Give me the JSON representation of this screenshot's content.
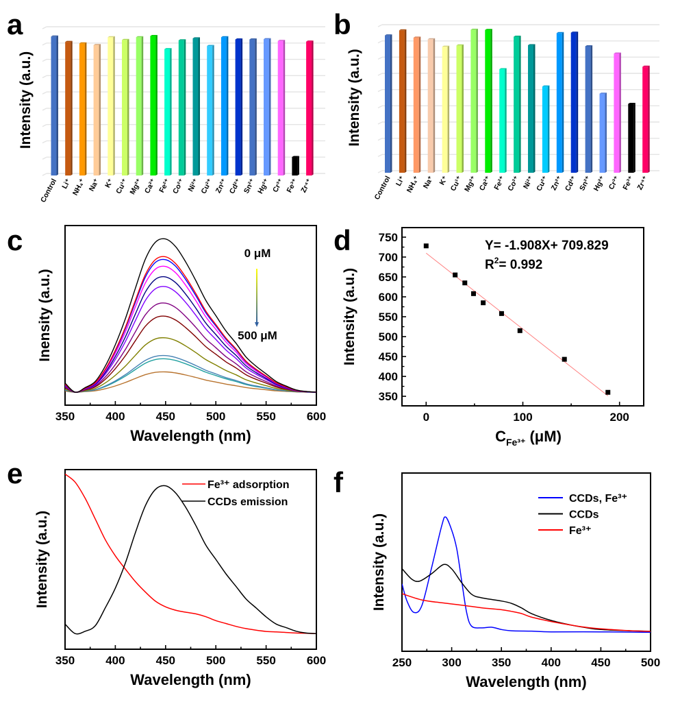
{
  "chart_data": [
    {
      "panel": "a",
      "type": "bar",
      "title": "",
      "xlabel": "",
      "ylabel": "Intensity (a.u.)",
      "ylim": [
        0,
        9
      ],
      "grid": true,
      "categories": [
        "Control",
        "Li⁺",
        "NH₄⁺",
        "Na⁺",
        "K⁺",
        "Cu¹⁺",
        "Mg²⁺",
        "Ca²⁺",
        "Fe²⁺",
        "Co²⁺",
        "Ni²⁺",
        "Cu²⁺",
        "Zn²⁺",
        "Cd²⁺",
        "Sn²⁺",
        "Hg²⁺",
        "Cr³⁺",
        "Fe³⁺",
        "Zr⁴⁺"
      ],
      "values": [
        8.4,
        8.07,
        7.98,
        7.88,
        8.36,
        8.19,
        8.36,
        8.43,
        7.63,
        8.17,
        8.29,
        7.82,
        8.36,
        8.22,
        8.22,
        8.24,
        8.13,
        1.01,
        8.09
      ],
      "colors": [
        "#4472C4",
        "#C55A11",
        "#FF9900",
        "#FFCC99",
        "#FFFF99",
        "#CCFF66",
        "#99FF66",
        "#00EE00",
        "#00FFCC",
        "#00CC99",
        "#009999",
        "#33CCFF",
        "#0099FF",
        "#0033CC",
        "#4472C4",
        "#6699FF",
        "#FF66FF",
        "#000000",
        "#FF0066"
      ]
    },
    {
      "panel": "b",
      "type": "bar",
      "title": "",
      "xlabel": "",
      "ylabel": "Intensity (a.u.)",
      "ylim": [
        0,
        9
      ],
      "grid": true,
      "categories": [
        "Control",
        "Li⁺",
        "NH₄⁺",
        "Na⁺",
        "K⁺",
        "Cu¹⁺",
        "Mg²⁺",
        "Ca²⁺",
        "Fe²⁺",
        "Co²⁺",
        "Ni²⁺",
        "Cu²⁺",
        "Zn²⁺",
        "Cd²⁺",
        "Sn²⁺",
        "Hg²⁺",
        "Cr³⁺",
        "Fe³⁺",
        "Zr⁴⁺"
      ],
      "values": [
        8.34,
        8.65,
        8.2,
        8.1,
        7.64,
        7.72,
        8.69,
        8.68,
        6.26,
        8.26,
        7.74,
        5.19,
        8.48,
        8.51,
        7.67,
        4.75,
        7.22,
        4.12,
        6.41
      ],
      "colors": [
        "#4472C4",
        "#C55A11",
        "#FF9966",
        "#F8CBAD",
        "#FFFF99",
        "#CCFF66",
        "#99FF66",
        "#00EE00",
        "#00FFCC",
        "#00CC99",
        "#009999",
        "#00CCFF",
        "#0099FF",
        "#0033CC",
        "#4472C4",
        "#6699FF",
        "#FF66FF",
        "#000000",
        "#FF0066"
      ]
    },
    {
      "panel": "c",
      "type": "line",
      "title": "",
      "xlabel": "Wavelength (nm)",
      "ylabel": "Inensity (a.u.)",
      "xlim": [
        350,
        600
      ],
      "ylim": [
        0,
        1
      ],
      "xticks": [
        350,
        400,
        450,
        500,
        550,
        600
      ],
      "grid": false,
      "annotations": {
        "top": "0 μM",
        "bottom": "500 μM"
      },
      "x": [
        350,
        360,
        370,
        380,
        390,
        400,
        410,
        420,
        430,
        440,
        450,
        460,
        470,
        480,
        490,
        500,
        510,
        520,
        530,
        540,
        550,
        560,
        570,
        580,
        590,
        600
      ],
      "profile": [
        0.06,
        0,
        0.03,
        0.07,
        0.17,
        0.31,
        0.48,
        0.68,
        0.87,
        0.98,
        1.0,
        0.95,
        0.85,
        0.73,
        0.6,
        0.5,
        0.4,
        0.32,
        0.23,
        0.17,
        0.12,
        0.07,
        0.04,
        0.015,
        0.005,
        0
      ],
      "baseline": 0.072,
      "series": [
        {
          "name": "0 μM",
          "peak": 0.925,
          "color": "#000000"
        },
        {
          "name": "s2",
          "peak": 0.826,
          "color": "#FF0000"
        },
        {
          "name": "s3",
          "peak": 0.81,
          "color": "#0000FF"
        },
        {
          "name": "s4",
          "peak": 0.772,
          "color": "#FF00FF"
        },
        {
          "name": "s5",
          "peak": 0.714,
          "color": "#000080"
        },
        {
          "name": "s6",
          "peak": 0.66,
          "color": "#8000FF"
        },
        {
          "name": "s7",
          "peak": 0.568,
          "color": "#800080"
        },
        {
          "name": "s8",
          "peak": 0.495,
          "color": "#800000"
        },
        {
          "name": "s9",
          "peak": 0.375,
          "color": "#808000"
        },
        {
          "name": "s10",
          "peak": 0.276,
          "color": "#4682B4"
        },
        {
          "name": "s11",
          "peak": 0.258,
          "color": "#20A0A0"
        },
        {
          "name": "500 μM",
          "peak": 0.185,
          "color": "#B8732E"
        }
      ]
    },
    {
      "panel": "d",
      "type": "scatter",
      "title": "",
      "xlabel": {
        "main": "C",
        "sub": "Fe³⁺",
        "unit": "(μM)"
      },
      "ylabel": "Intensity (a.u.)",
      "xlim": [
        -25,
        225
      ],
      "ylim": [
        326,
        774
      ],
      "xticks": [
        0,
        100,
        200
      ],
      "yticks": [
        350,
        400,
        450,
        500,
        550,
        600,
        650,
        700,
        750
      ],
      "x": [
        0,
        30,
        40,
        49,
        59,
        78,
        97,
        143,
        188
      ],
      "y": [
        728,
        655,
        635,
        608,
        585,
        558,
        515,
        443,
        360
      ],
      "fit": {
        "slope": -1.908,
        "intercept": 709.829,
        "x_range": [
          0,
          188
        ],
        "color": "#FF8080"
      },
      "equation": "Y= -1.908X+ 709.829",
      "r2_label": "R",
      "r2_sup": "2",
      "r2_value": "= 0.992"
    },
    {
      "panel": "e",
      "type": "line",
      "title": "",
      "xlabel": "Wavelength (nm)",
      "ylabel": "Intensity (a.u.)",
      "xlim": [
        350,
        600
      ],
      "ylim": [
        0,
        1
      ],
      "xticks": [
        350,
        400,
        450,
        500,
        550,
        600
      ],
      "legend_position": "top-right",
      "x": [
        350,
        360,
        370,
        380,
        390,
        400,
        410,
        420,
        430,
        440,
        450,
        460,
        470,
        480,
        490,
        500,
        510,
        520,
        530,
        540,
        550,
        560,
        570,
        580,
        590,
        600
      ],
      "series": [
        {
          "name": "Fe³⁺ adsorption",
          "color": "#FF0000",
          "values": [
            0.975,
            0.93,
            0.84,
            0.726,
            0.61,
            0.52,
            0.446,
            0.376,
            0.318,
            0.267,
            0.236,
            0.217,
            0.206,
            0.197,
            0.181,
            0.159,
            0.143,
            0.127,
            0.115,
            0.106,
            0.099,
            0.096,
            0.093,
            0.09,
            0.089,
            0.087
          ]
        },
        {
          "name": "CCDs emission",
          "color": "#000000",
          "values": [
            0.14,
            0.087,
            0.1,
            0.13,
            0.23,
            0.34,
            0.48,
            0.65,
            0.8,
            0.89,
            0.91,
            0.87,
            0.79,
            0.69,
            0.58,
            0.5,
            0.42,
            0.35,
            0.28,
            0.23,
            0.18,
            0.14,
            0.12,
            0.1,
            0.09,
            0.087
          ]
        }
      ]
    },
    {
      "panel": "f",
      "type": "line",
      "title": "",
      "xlabel": "Wavelength (nm)",
      "ylabel": "Intensity (a.u.)",
      "xlim": [
        250,
        500
      ],
      "ylim": [
        0,
        1
      ],
      "xticks": [
        250,
        300,
        350,
        400,
        450,
        500
      ],
      "legend_position": "top-right",
      "series": [
        {
          "name": "CCDs, Fe³⁺",
          "color": "#0000FF",
          "x": [
            250,
            255,
            262,
            270,
            280,
            290,
            294,
            300,
            305,
            310,
            315,
            320,
            330,
            340,
            350,
            360,
            380,
            400,
            450,
            500
          ],
          "values": [
            0.378,
            0.282,
            0.218,
            0.256,
            0.474,
            0.705,
            0.753,
            0.68,
            0.577,
            0.397,
            0.218,
            0.141,
            0.131,
            0.135,
            0.122,
            0.115,
            0.113,
            0.109,
            0.109,
            0.106
          ]
        },
        {
          "name": "CCDs",
          "color": "#000000",
          "x": [
            250,
            260,
            268,
            280,
            292,
            300,
            310,
            320,
            330,
            350,
            360,
            370,
            380,
            400,
            420,
            440,
            450,
            460,
            480,
            500
          ],
          "values": [
            0.464,
            0.404,
            0.394,
            0.436,
            0.487,
            0.462,
            0.385,
            0.32,
            0.3,
            0.282,
            0.269,
            0.244,
            0.212,
            0.173,
            0.147,
            0.128,
            0.122,
            0.119,
            0.115,
            0.112
          ]
        },
        {
          "name": "Fe³⁺",
          "color": "#FF0000",
          "x": [
            250,
            270,
            290,
            310,
            330,
            350,
            360,
            370,
            380,
            400,
            420,
            440,
            460,
            480,
            500
          ],
          "values": [
            0.323,
            0.288,
            0.272,
            0.259,
            0.244,
            0.233,
            0.224,
            0.212,
            0.192,
            0.167,
            0.147,
            0.131,
            0.122,
            0.115,
            0.112
          ]
        }
      ]
    }
  ]
}
